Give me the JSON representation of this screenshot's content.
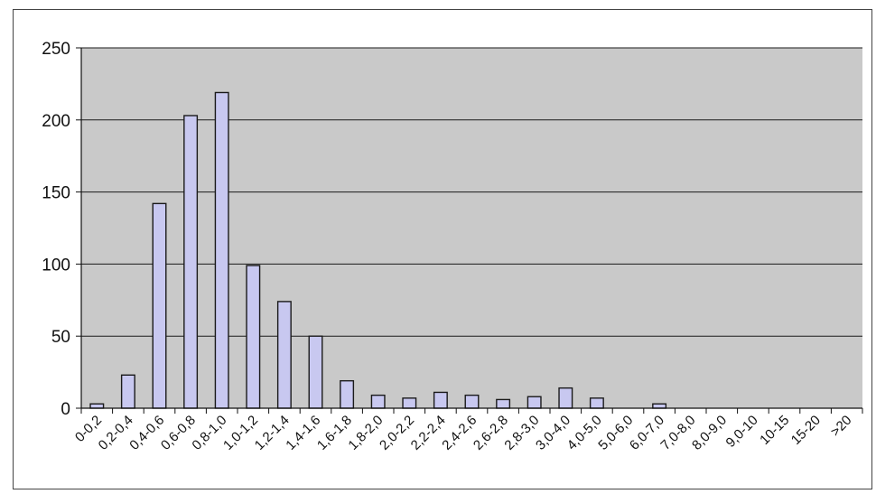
{
  "chart_data": {
    "type": "bar",
    "categories": [
      "0-0,2",
      "0,2-0,4",
      "0,4-0,6",
      "0,6-0,8",
      "0,8-1,0",
      "1,0-1,2",
      "1,2-1,4",
      "1,4-1,6",
      "1,6-1,8",
      "1,8-2,0",
      "2,0-2,2",
      "2,2-2,4",
      "2,4-2,6",
      "2,6-2,8",
      "2,8-3,0",
      "3,0-4,0",
      "4,0-5,0",
      "5,0-6,0",
      "6,0-7,0",
      "7,0-8,0",
      "8,0-9,0",
      "9,0-10",
      "10-15",
      "15-20",
      ">20"
    ],
    "values": [
      3,
      23,
      142,
      203,
      219,
      99,
      74,
      50,
      19,
      9,
      7,
      11,
      9,
      6,
      8,
      14,
      7,
      0,
      3,
      0,
      0,
      0,
      0,
      0,
      0
    ],
    "title": "",
    "xlabel": "",
    "ylabel": "",
    "ylim": [
      0,
      250
    ],
    "yticks": [
      0,
      50,
      100,
      150,
      200,
      250
    ],
    "grid": true,
    "legend": "none",
    "colors": {
      "plot_background": "#c9c9c9",
      "bar_fill": "#c8c8f0",
      "bar_stroke": "#1a1a1a",
      "gridline": "#1a1a1a"
    }
  }
}
